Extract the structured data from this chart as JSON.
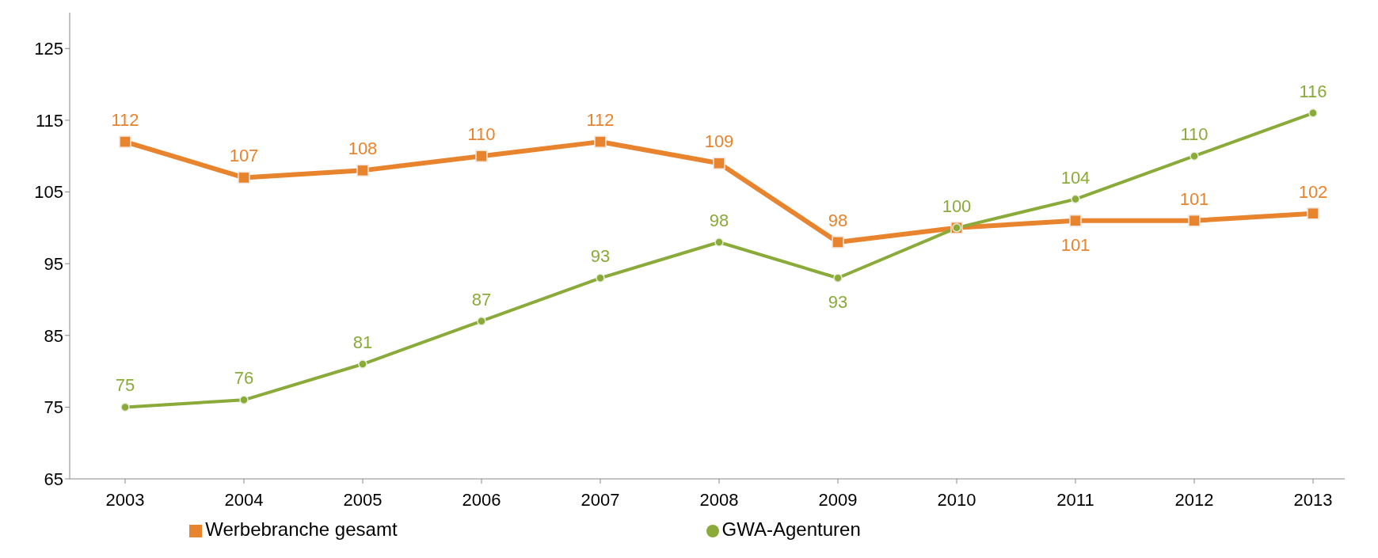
{
  "chart_data": {
    "type": "line",
    "categories": [
      "2003",
      "2004",
      "2005",
      "2006",
      "2007",
      "2008",
      "2009",
      "2010",
      "2011",
      "2012",
      "2013"
    ],
    "series": [
      {
        "name": "Werbebranche gesamt",
        "color": "#e8832e",
        "marker": "square",
        "values": [
          112,
          107,
          108,
          110,
          112,
          109,
          98,
          100,
          101,
          101,
          102
        ],
        "value_labels": [
          "112",
          "107",
          "108",
          "110",
          "112",
          "109",
          "98",
          null,
          "101",
          "101",
          "102"
        ]
      },
      {
        "name": "GWA-Agenturen",
        "color": "#8aaa3a",
        "marker": "circle",
        "values": [
          75,
          76,
          81,
          87,
          93,
          98,
          93,
          100,
          104,
          110,
          116
        ],
        "value_labels": [
          "75",
          "76",
          "81",
          "87",
          "93",
          "98",
          "93",
          "100",
          "104",
          "110",
          "116"
        ]
      }
    ],
    "ylim": [
      65,
      130
    ],
    "yticks": [
      65,
      75,
      85,
      95,
      105,
      115,
      125
    ],
    "grid": false,
    "legend": "bottom"
  }
}
